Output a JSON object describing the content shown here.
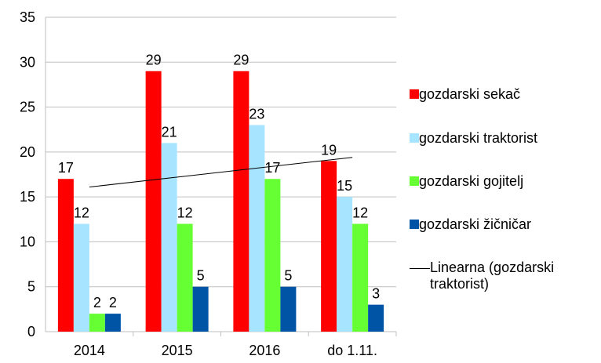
{
  "chart_data": {
    "type": "bar",
    "categories": [
      "2014",
      "2015",
      "2016",
      "do 1.11."
    ],
    "series": [
      {
        "name": "gozdarski sekač",
        "color": "#ff0000",
        "values": [
          17,
          29,
          29,
          19
        ]
      },
      {
        "name": "gozdarski traktorist",
        "color": "#a6e4ff",
        "values": [
          12,
          21,
          23,
          15
        ]
      },
      {
        "name": "gozdarski gojitelj",
        "color": "#66ff33",
        "values": [
          2,
          12,
          17,
          12
        ]
      },
      {
        "name": "gozdarski žičničar",
        "color": "#0054a6",
        "values": [
          2,
          5,
          5,
          3
        ]
      }
    ],
    "trendline": {
      "name": "Linearna (gozdarski traktorist)",
      "series": 1,
      "color": "#000000"
    },
    "ylim": [
      0,
      35
    ],
    "yticks": [
      0,
      5,
      10,
      15,
      20,
      25,
      30,
      35
    ],
    "grid": true,
    "legend": "right"
  }
}
